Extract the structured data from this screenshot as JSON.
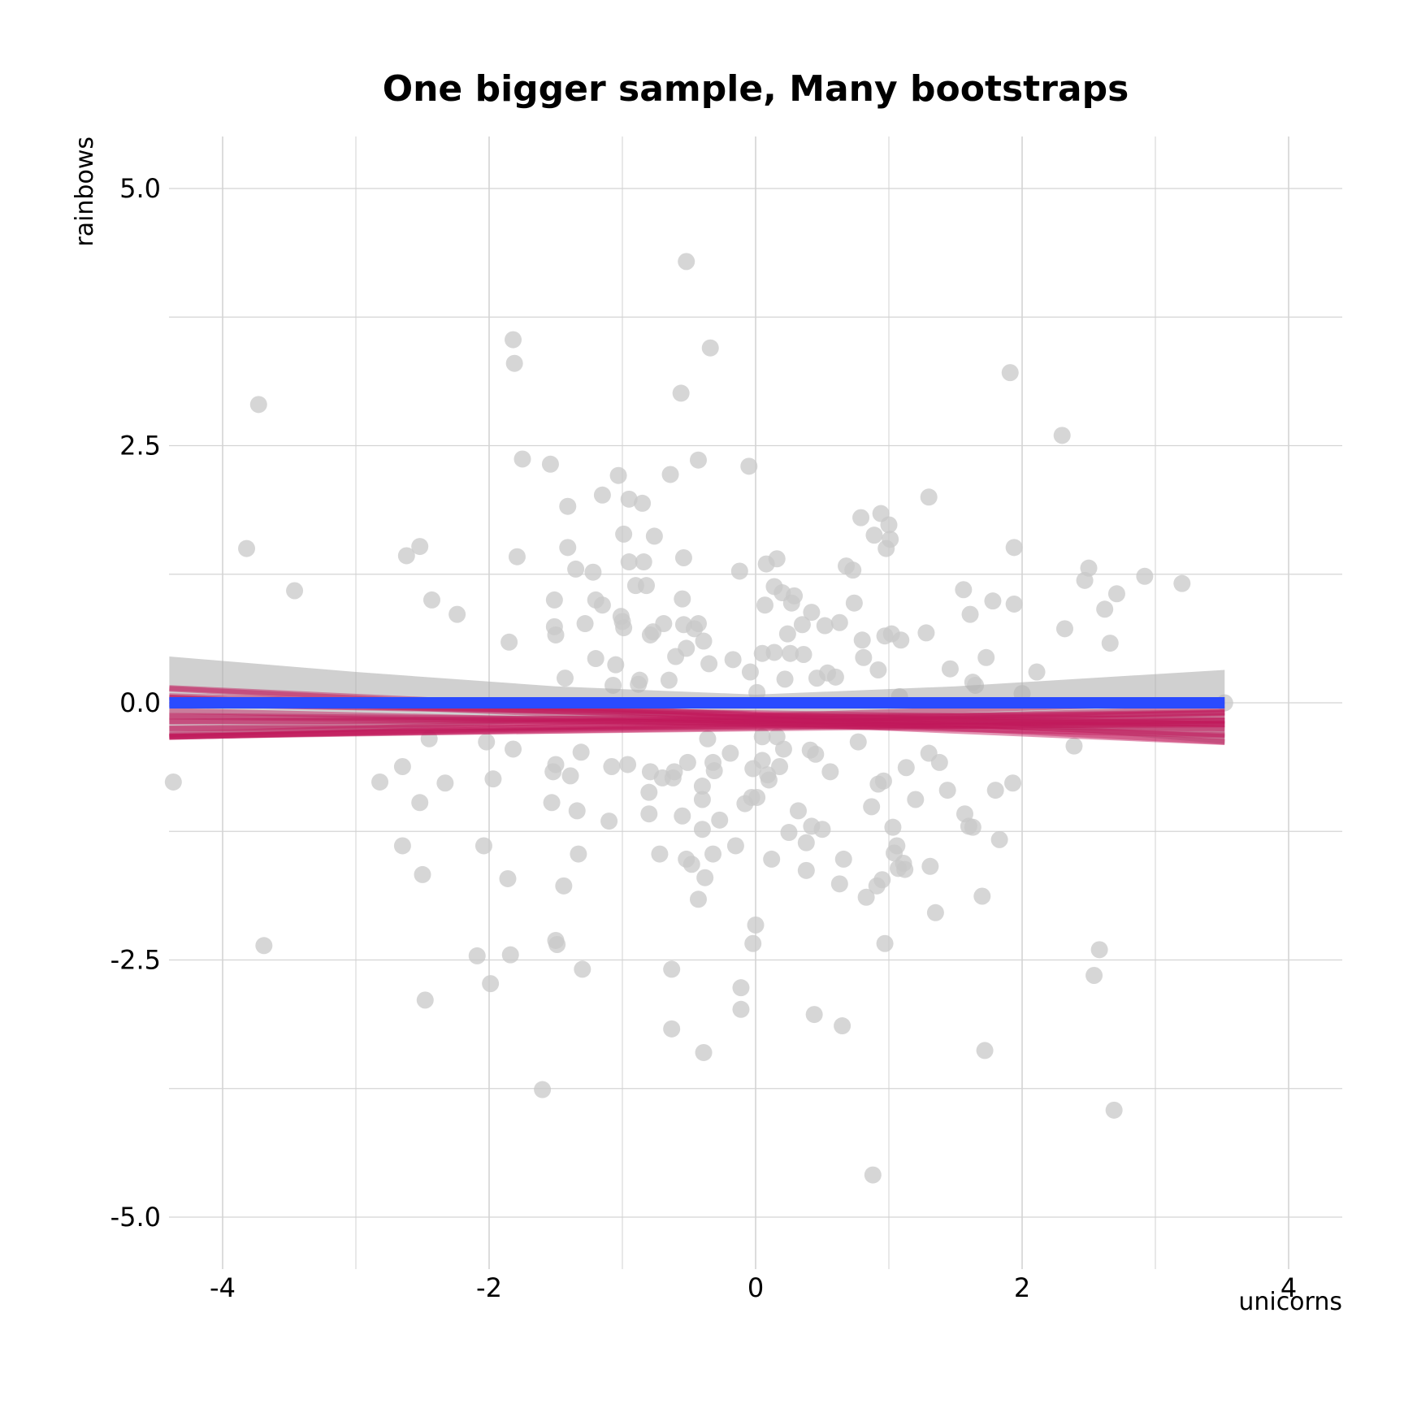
{
  "chart_data": {
    "type": "scatter",
    "title": "One bigger sample, Many bootstraps",
    "xlabel": "unicorns",
    "ylabel": "rainbows",
    "xlim": [
      -4.4,
      4.4
    ],
    "ylim": [
      -5.5,
      5.5
    ],
    "x_ticks": [
      -4,
      -2,
      0,
      2,
      4
    ],
    "x_tick_labels": [
      "-4",
      "-2",
      "0",
      "2",
      "4"
    ],
    "y_ticks": [
      -5,
      -2.5,
      0,
      2.5,
      5
    ],
    "y_tick_labels": [
      "-5.0",
      "-2.5",
      "0.0",
      "2.5",
      "5.0"
    ],
    "grid": true,
    "legend": "none",
    "colors": {
      "points": "#c8c8c8",
      "bootstrap_lines": "#c2185b",
      "fit_line": "#2a4bff",
      "confidence_band": "#b0b0b0",
      "grid": "#d4d4d4"
    },
    "points": [
      [
        -4.37,
        -0.77
      ],
      [
        -3.82,
        1.5
      ],
      [
        -3.73,
        2.9
      ],
      [
        -3.69,
        -2.36
      ],
      [
        -3.46,
        1.09
      ],
      [
        -2.82,
        -0.77
      ],
      [
        -2.65,
        -0.62
      ],
      [
        -2.65,
        -1.39
      ],
      [
        -2.62,
        1.43
      ],
      [
        -2.52,
        1.52
      ],
      [
        -2.52,
        -0.97
      ],
      [
        -2.5,
        -1.67
      ],
      [
        -2.48,
        -2.89
      ],
      [
        -2.45,
        -0.35
      ],
      [
        -2.43,
        1.0
      ],
      [
        -2.33,
        -0.78
      ],
      [
        -2.24,
        0.86
      ],
      [
        -2.09,
        -2.46
      ],
      [
        -2.04,
        -1.39
      ],
      [
        -2.02,
        -0.38
      ],
      [
        -1.99,
        -2.73
      ],
      [
        -1.97,
        -0.74
      ],
      [
        -1.86,
        -1.71
      ],
      [
        -1.85,
        0.59
      ],
      [
        -1.84,
        -2.45
      ],
      [
        -1.82,
        -0.45
      ],
      [
        -1.82,
        3.53
      ],
      [
        -1.81,
        3.3
      ],
      [
        -1.79,
        1.42
      ],
      [
        -1.75,
        2.37
      ],
      [
        -1.6,
        -3.76
      ],
      [
        -1.54,
        2.32
      ],
      [
        -1.53,
        -0.97
      ],
      [
        -1.52,
        -0.67
      ],
      [
        -1.51,
        1.0
      ],
      [
        -1.51,
        0.74
      ],
      [
        -1.5,
        0.66
      ],
      [
        -1.5,
        -0.6
      ],
      [
        -1.5,
        -2.31
      ],
      [
        -1.49,
        -2.35
      ],
      [
        -1.44,
        -1.78
      ],
      [
        -1.43,
        0.24
      ],
      [
        -1.41,
        1.91
      ],
      [
        -1.41,
        1.51
      ],
      [
        -1.39,
        -0.71
      ],
      [
        -1.35,
        1.3
      ],
      [
        -1.34,
        -1.05
      ],
      [
        -1.33,
        -1.47
      ],
      [
        -1.31,
        -0.48
      ],
      [
        -1.3,
        -2.59
      ],
      [
        -1.28,
        0.77
      ],
      [
        -1.22,
        1.27
      ],
      [
        -1.2,
        0.43
      ],
      [
        -1.2,
        1.0
      ],
      [
        -1.15,
        0.95
      ],
      [
        -1.15,
        2.02
      ],
      [
        -1.1,
        -1.15
      ],
      [
        -1.08,
        -0.62
      ],
      [
        -1.07,
        0.17
      ],
      [
        -1.05,
        0.37
      ],
      [
        -1.03,
        2.21
      ],
      [
        -1.01,
        0.84
      ],
      [
        -1.0,
        0.79
      ],
      [
        -0.99,
        1.64
      ],
      [
        -0.99,
        0.73
      ],
      [
        -0.96,
        -0.6
      ],
      [
        -0.95,
        1.37
      ],
      [
        -0.95,
        1.98
      ],
      [
        -0.9,
        1.14
      ],
      [
        -0.88,
        0.18
      ],
      [
        -0.87,
        0.22
      ],
      [
        -0.85,
        1.94
      ],
      [
        -0.84,
        1.37
      ],
      [
        -0.82,
        1.14
      ],
      [
        -0.8,
        -1.08
      ],
      [
        -0.8,
        -0.87
      ],
      [
        -0.79,
        -0.67
      ],
      [
        -0.79,
        0.66
      ],
      [
        -0.77,
        0.69
      ],
      [
        -0.76,
        1.62
      ],
      [
        -0.72,
        -1.47
      ],
      [
        -0.7,
        -0.73
      ],
      [
        -0.69,
        0.77
      ],
      [
        -0.65,
        0.22
      ],
      [
        -0.64,
        2.22
      ],
      [
        -0.63,
        -3.17
      ],
      [
        -0.63,
        -2.59
      ],
      [
        -0.62,
        -0.73
      ],
      [
        -0.61,
        -0.67
      ],
      [
        -0.6,
        0.45
      ],
      [
        -0.56,
        3.01
      ],
      [
        -0.55,
        1.01
      ],
      [
        -0.55,
        -1.1
      ],
      [
        -0.54,
        1.41
      ],
      [
        -0.54,
        0.76
      ],
      [
        -0.52,
        4.29
      ],
      [
        -0.52,
        -1.52
      ],
      [
        -0.52,
        0.53
      ],
      [
        -0.51,
        -0.58
      ],
      [
        -0.48,
        -1.57
      ],
      [
        -0.46,
        0.72
      ],
      [
        -0.43,
        2.36
      ],
      [
        -0.43,
        -1.91
      ],
      [
        -0.43,
        0.77
      ],
      [
        -0.4,
        -0.81
      ],
      [
        -0.4,
        -0.94
      ],
      [
        -0.4,
        -1.23
      ],
      [
        -0.39,
        0.6
      ],
      [
        -0.39,
        -3.4
      ],
      [
        -0.38,
        -1.7
      ],
      [
        -0.36,
        -0.35
      ],
      [
        -0.35,
        0.38
      ],
      [
        -0.34,
        3.45
      ],
      [
        -0.32,
        -0.58
      ],
      [
        -0.32,
        -1.47
      ],
      [
        -0.31,
        -0.66
      ],
      [
        -0.27,
        -1.14
      ],
      [
        -0.19,
        -0.49
      ],
      [
        -0.17,
        0.42
      ],
      [
        -0.15,
        -1.39
      ],
      [
        -0.12,
        1.28
      ],
      [
        -0.11,
        -2.77
      ],
      [
        -0.11,
        -2.98
      ],
      [
        -0.08,
        -0.98
      ],
      [
        -0.05,
        2.3
      ],
      [
        -0.04,
        0.3
      ],
      [
        -0.03,
        -0.92
      ],
      [
        -0.02,
        -0.64
      ],
      [
        -0.02,
        -2.34
      ],
      [
        0.0,
        -2.16
      ],
      [
        0.01,
        0.1
      ],
      [
        0.01,
        -0.92
      ],
      [
        0.05,
        -0.56
      ],
      [
        0.05,
        -0.33
      ],
      [
        0.05,
        0.48
      ],
      [
        0.07,
        0.95
      ],
      [
        0.08,
        1.35
      ],
      [
        0.09,
        -0.7
      ],
      [
        0.1,
        -0.75
      ],
      [
        0.12,
        -1.52
      ],
      [
        0.14,
        0.49
      ],
      [
        0.14,
        1.13
      ],
      [
        0.16,
        1.4
      ],
      [
        0.16,
        -0.33
      ],
      [
        0.18,
        -0.62
      ],
      [
        0.2,
        1.07
      ],
      [
        0.21,
        -0.45
      ],
      [
        0.22,
        0.23
      ],
      [
        0.24,
        0.67
      ],
      [
        0.25,
        -1.26
      ],
      [
        0.26,
        0.48
      ],
      [
        0.27,
        0.97
      ],
      [
        0.29,
        1.04
      ],
      [
        0.32,
        -1.05
      ],
      [
        0.35,
        0.76
      ],
      [
        0.36,
        0.47
      ],
      [
        0.38,
        -1.63
      ],
      [
        0.38,
        -1.36
      ],
      [
        0.41,
        -0.46
      ],
      [
        0.42,
        -1.2
      ],
      [
        0.42,
        0.88
      ],
      [
        0.44,
        -3.03
      ],
      [
        0.45,
        -0.5
      ],
      [
        0.46,
        0.24
      ],
      [
        0.5,
        -1.23
      ],
      [
        0.52,
        0.75
      ],
      [
        0.54,
        0.29
      ],
      [
        0.56,
        -0.67
      ],
      [
        0.6,
        0.25
      ],
      [
        0.63,
        0.78
      ],
      [
        0.63,
        -1.76
      ],
      [
        0.65,
        -3.14
      ],
      [
        0.66,
        -1.52
      ],
      [
        0.68,
        1.33
      ],
      [
        0.73,
        1.29
      ],
      [
        0.74,
        0.97
      ],
      [
        0.77,
        -0.38
      ],
      [
        0.79,
        1.8
      ],
      [
        0.8,
        0.61
      ],
      [
        0.81,
        0.44
      ],
      [
        0.83,
        -1.89
      ],
      [
        0.87,
        -1.01
      ],
      [
        0.88,
        -4.59
      ],
      [
        0.89,
        1.63
      ],
      [
        0.91,
        -1.78
      ],
      [
        0.92,
        -0.79
      ],
      [
        0.92,
        0.32
      ],
      [
        0.94,
        1.84
      ],
      [
        0.95,
        -1.72
      ],
      [
        0.96,
        -0.76
      ],
      [
        0.97,
        -2.34
      ],
      [
        0.97,
        0.65
      ],
      [
        0.98,
        1.5
      ],
      [
        1.0,
        1.73
      ],
      [
        1.01,
        1.59
      ],
      [
        1.02,
        0.67
      ],
      [
        1.03,
        -1.21
      ],
      [
        1.04,
        -1.46
      ],
      [
        1.06,
        -1.39
      ],
      [
        1.07,
        -1.61
      ],
      [
        1.08,
        0.06
      ],
      [
        1.09,
        0.61
      ],
      [
        1.11,
        -1.56
      ],
      [
        1.12,
        -1.62
      ],
      [
        1.13,
        -0.63
      ],
      [
        1.2,
        -0.94
      ],
      [
        1.28,
        0.68
      ],
      [
        1.3,
        2.0
      ],
      [
        1.3,
        -0.49
      ],
      [
        1.31,
        -1.59
      ],
      [
        1.35,
        -2.04
      ],
      [
        1.38,
        -0.58
      ],
      [
        1.44,
        -0.85
      ],
      [
        1.46,
        0.33
      ],
      [
        1.56,
        1.1
      ],
      [
        1.57,
        -1.08
      ],
      [
        1.6,
        -1.2
      ],
      [
        1.61,
        0.86
      ],
      [
        1.63,
        0.2
      ],
      [
        1.63,
        -1.21
      ],
      [
        1.65,
        0.17
      ],
      [
        1.7,
        -1.88
      ],
      [
        1.72,
        -3.38
      ],
      [
        1.73,
        0.44
      ],
      [
        1.78,
        0.99
      ],
      [
        1.8,
        -0.85
      ],
      [
        1.83,
        -1.33
      ],
      [
        1.91,
        3.21
      ],
      [
        1.93,
        -0.78
      ],
      [
        1.94,
        0.96
      ],
      [
        1.94,
        1.51
      ],
      [
        2.0,
        0.09
      ],
      [
        2.11,
        0.3
      ],
      [
        2.3,
        2.6
      ],
      [
        2.32,
        0.72
      ],
      [
        2.39,
        -0.42
      ],
      [
        2.47,
        1.19
      ],
      [
        2.5,
        1.31
      ],
      [
        2.54,
        -2.65
      ],
      [
        2.58,
        -2.4
      ],
      [
        2.62,
        0.91
      ],
      [
        2.66,
        0.58
      ],
      [
        2.69,
        -3.96
      ],
      [
        2.71,
        1.06
      ],
      [
        2.92,
        1.23
      ],
      [
        3.2,
        1.16
      ],
      [
        3.52,
        0.0
      ]
    ],
    "fit_line": {
      "intercept": 0.0,
      "slope": 0.0,
      "x_range": [
        -4.4,
        3.52
      ]
    },
    "confidence_band": {
      "x": [
        -4.4,
        -3.0,
        -1.5,
        0.0,
        1.5,
        3.52
      ],
      "upper": [
        0.45,
        0.3,
        0.16,
        0.08,
        0.16,
        0.32
      ],
      "lower": [
        -0.35,
        -0.28,
        -0.18,
        -0.08,
        -0.18,
        -0.4
      ]
    },
    "bootstrap_fits": [
      [
        -0.18,
        0.0
      ],
      [
        -0.12,
        -0.06
      ],
      [
        -0.15,
        -0.045
      ],
      [
        -0.2,
        0.03
      ],
      [
        -0.22,
        0.025
      ],
      [
        -0.1,
        -0.02
      ],
      [
        -0.25,
        0.015
      ],
      [
        -0.17,
        -0.01
      ],
      [
        -0.13,
        0.04
      ],
      [
        -0.21,
        -0.03
      ],
      [
        -0.16,
        0.02
      ],
      [
        -0.19,
        -0.055
      ],
      [
        -0.14,
        0.01
      ],
      [
        -0.23,
        0.005
      ],
      [
        -0.11,
        -0.04
      ],
      [
        -0.18,
        0.035
      ],
      [
        -0.2,
        -0.015
      ],
      [
        -0.15,
        -0.065
      ],
      [
        -0.24,
        0.02
      ],
      [
        -0.12,
        -0.025
      ]
    ]
  }
}
